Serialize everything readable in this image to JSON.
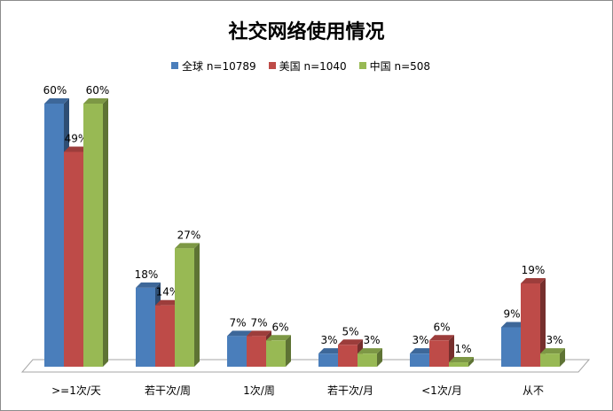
{
  "chart_data": {
    "type": "bar",
    "title": "社交网络使用情况",
    "categories": [
      ">=1次/天",
      "若干次/周",
      "1次/周",
      "若干次/月",
      "<1次/月",
      "从不"
    ],
    "series": [
      {
        "name": "全球 n=10789",
        "color": "#4a7ebb",
        "values": [
          60,
          18,
          7,
          3,
          3,
          9
        ]
      },
      {
        "name": "美国 n=1040",
        "color": "#be4b48",
        "values": [
          49,
          14,
          7,
          5,
          6,
          19
        ]
      },
      {
        "name": "中国 n=508",
        "color": "#98b954",
        "values": [
          60,
          27,
          6,
          3,
          1,
          3
        ]
      }
    ],
    "value_suffix": "%",
    "ylim": [
      0,
      60
    ],
    "grid": false,
    "legend": "top",
    "xlabel": "",
    "ylabel": ""
  }
}
